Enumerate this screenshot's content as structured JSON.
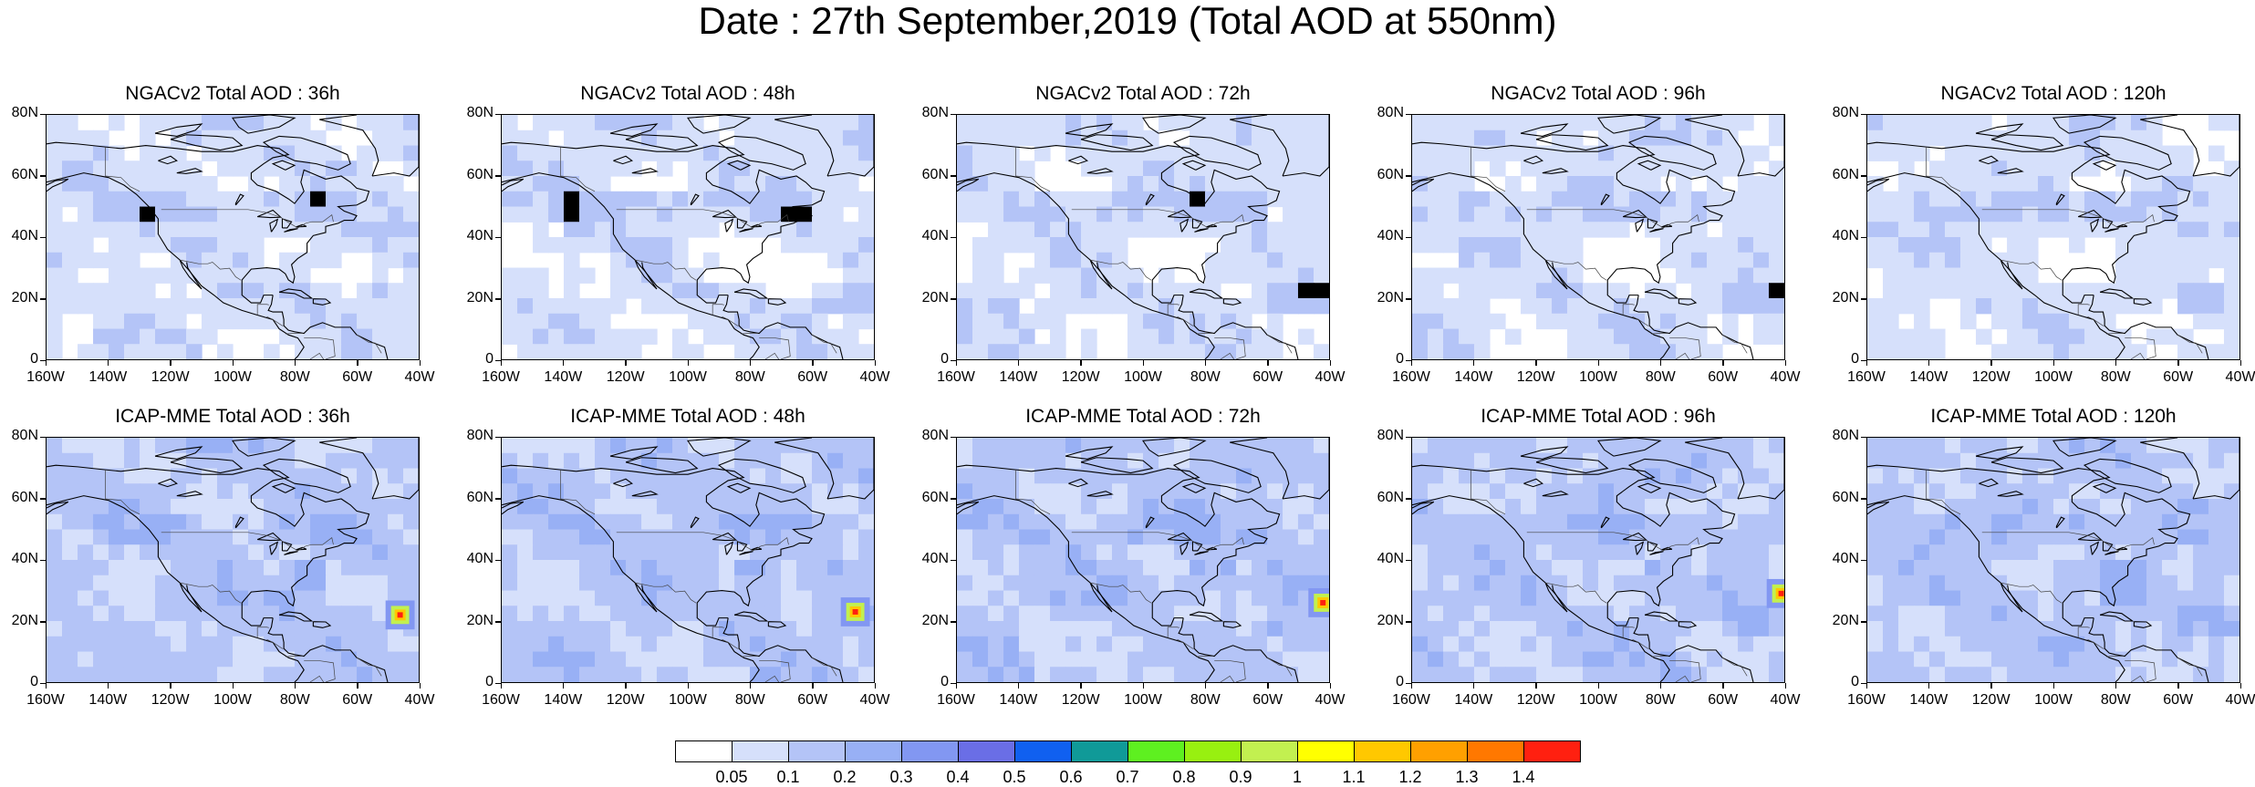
{
  "title": "Date : 27th September,2019 (Total AOD at 550nm)",
  "panels": [
    {
      "title": "NGACv2 Total AOD : 36h"
    },
    {
      "title": "NGACv2 Total AOD : 48h"
    },
    {
      "title": "NGACv2 Total AOD : 72h"
    },
    {
      "title": "NGACv2 Total AOD : 96h"
    },
    {
      "title": "NGACv2 Total AOD : 120h"
    },
    {
      "title": "ICAP-MME Total AOD : 36h"
    },
    {
      "title": "ICAP-MME Total AOD : 48h"
    },
    {
      "title": "ICAP-MME Total AOD : 72h"
    },
    {
      "title": "ICAP-MME Total AOD : 96h"
    },
    {
      "title": "ICAP-MME Total AOD : 120h"
    }
  ],
  "axes": {
    "lat_labels": [
      "80N",
      "60N",
      "40N",
      "20N",
      "0"
    ],
    "lon_labels": [
      "160W",
      "140W",
      "120W",
      "100W",
      "80W",
      "60W",
      "40W"
    ],
    "lon_range": [
      -160,
      -40
    ],
    "lat_range": [
      0,
      80
    ]
  },
  "colorbar": {
    "colors": [
      "#ffffff",
      "#d6e0fb",
      "#b4c4f7",
      "#98b0f5",
      "#8297f2",
      "#6a6ee6",
      "#1060f0",
      "#109a98",
      "#5ef020",
      "#98f010",
      "#c2f050",
      "#ffff00",
      "#ffc800",
      "#ffa000",
      "#ff7800",
      "#ff2010"
    ],
    "labels": [
      "0.05",
      "0.1",
      "0.2",
      "0.3",
      "0.4",
      "0.5",
      "0.6",
      "0.7",
      "0.8",
      "0.9",
      "1",
      "1.1",
      "1.2",
      "1.3",
      "1.4"
    ]
  }
}
